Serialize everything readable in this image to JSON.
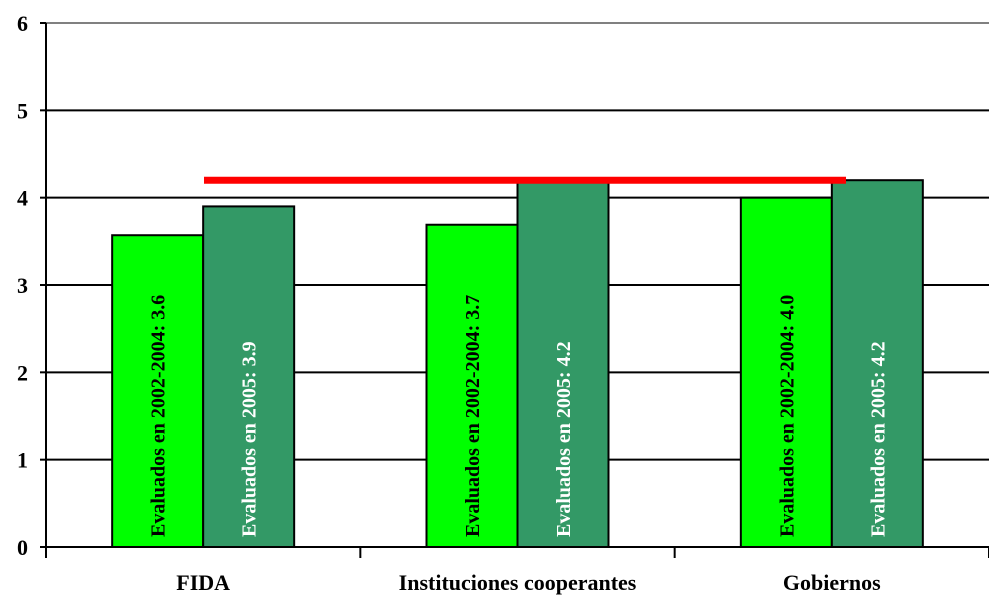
{
  "chart_data": {
    "type": "bar",
    "categories": [
      "FIDA",
      "Instituciones cooperantes",
      "Gobiernos"
    ],
    "series": [
      {
        "color": "#00ff00",
        "label_color": "#000000",
        "values": [
          3.57,
          3.69,
          4.0
        ],
        "bar_labels": [
          "Evaluados en 2002-2004: 3.6",
          "Evaluados en 2002-2004: 3.7",
          "Evaluados en 2002-2004: 4.0"
        ]
      },
      {
        "color": "#339966",
        "label_color": "#ffffff",
        "values": [
          3.9,
          4.2,
          4.2
        ],
        "bar_labels": [
          "Evaluados en 2005: 3.9",
          "Evaluados en 2005: 4.2",
          "Evaluados en 2005: 4.2"
        ]
      }
    ],
    "reference_line": {
      "value": 4.2,
      "color": "#ff0000"
    },
    "ylim": [
      0,
      6
    ],
    "yticks": [
      "0",
      "1",
      "2",
      "3",
      "4",
      "5",
      "6"
    ],
    "grid": true,
    "legend": "none",
    "title": "",
    "xlabel": "",
    "ylabel": ""
  }
}
